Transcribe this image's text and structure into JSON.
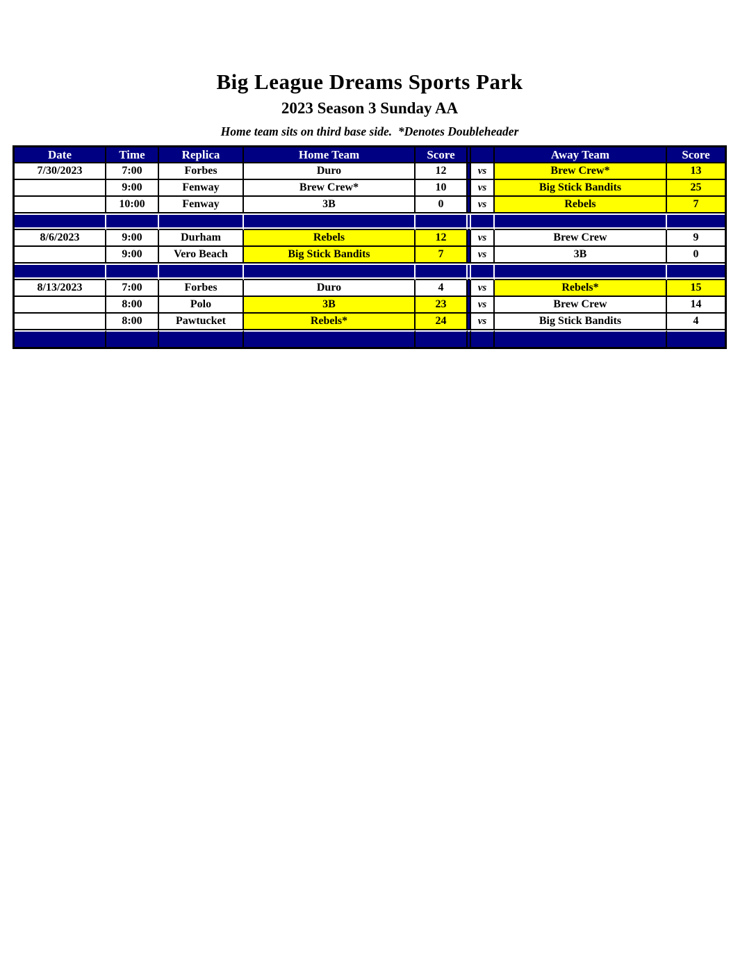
{
  "title": "Big League Dreams Sports Park",
  "subtitle": "2023 Season 3 Sunday AA",
  "note": "Home team sits on third base side.  *Denotes Doubleheader",
  "colors": {
    "header_bg": "#000083",
    "header_text": "#ffffff",
    "winner_highlight": "#ffff00",
    "grid_line": "#000000"
  },
  "table": {
    "headers": {
      "date": "Date",
      "time": "Time",
      "replica": "Replica",
      "home_team": "Home Team",
      "home_score": "Score",
      "away_team": "Away Team",
      "away_score": "Score"
    },
    "vs_label": "vs",
    "rows": [
      {
        "type": "game",
        "date": "7/30/2023",
        "time": "7:00",
        "replica": "Forbes",
        "home": "Duro",
        "home_score": "12",
        "away": "Brew Crew*",
        "away_score": "13",
        "winner": "away"
      },
      {
        "type": "game",
        "date": "",
        "time": "9:00",
        "replica": "Fenway",
        "home": "Brew Crew*",
        "home_score": "10",
        "away": "Big Stick Bandits",
        "away_score": "25",
        "winner": "away"
      },
      {
        "type": "game",
        "date": "",
        "time": "10:00",
        "replica": "Fenway",
        "home": "3B",
        "home_score": "0",
        "away": "Rebels",
        "away_score": "7",
        "winner": "away"
      },
      {
        "type": "separator"
      },
      {
        "type": "game",
        "date": "8/6/2023",
        "time": "9:00",
        "replica": "Durham",
        "home": "Rebels",
        "home_score": "12",
        "away": "Brew Crew",
        "away_score": "9",
        "winner": "home"
      },
      {
        "type": "game",
        "date": "",
        "time": "9:00",
        "replica": "Vero Beach",
        "home": "Big Stick Bandits",
        "home_score": "7",
        "away": "3B",
        "away_score": "0",
        "winner": "home"
      },
      {
        "type": "separator"
      },
      {
        "type": "game",
        "date": "8/13/2023",
        "time": "7:00",
        "replica": "Forbes",
        "home": "Duro",
        "home_score": "4",
        "away": "Rebels*",
        "away_score": "15",
        "winner": "away"
      },
      {
        "type": "game",
        "date": "",
        "time": "8:00",
        "replica": "Polo",
        "home": "3B",
        "home_score": "23",
        "away": "Brew Crew",
        "away_score": "14",
        "winner": "home"
      },
      {
        "type": "game",
        "date": "",
        "time": "8:00",
        "replica": "Pawtucket",
        "home": "Rebels*",
        "home_score": "24",
        "away": "Big Stick Bandits",
        "away_score": "4",
        "winner": "home"
      },
      {
        "type": "separator"
      }
    ]
  }
}
